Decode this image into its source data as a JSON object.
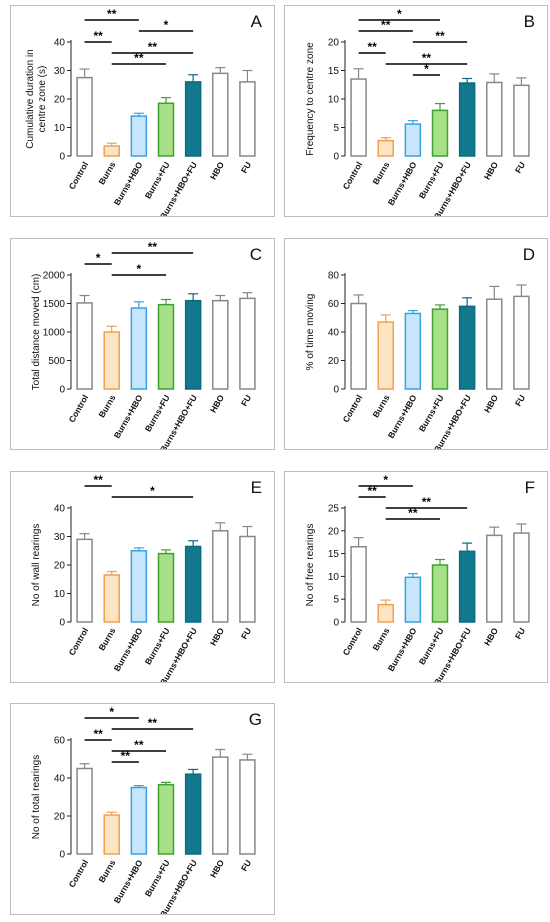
{
  "figure": {
    "bar_colors": [
      "#888888",
      "#f0a050",
      "#3aa0e0",
      "#40a030",
      "#0a6a80",
      "#888888",
      "#888888"
    ],
    "bar_fills": [
      "#ffffff",
      "#fde4c3",
      "#c8e6fb",
      "#a8e08a",
      "#12788e",
      "#ffffff",
      "#ffffff"
    ]
  },
  "chart_data": [
    {
      "type": "bar",
      "panel": "A",
      "ylabel": "Cumulative duration in\ncentre zone (s)",
      "categories": [
        "Control",
        "Burns",
        "Burns+HBO",
        "Burns+FU",
        "Burns+HBO+FU",
        "HBO",
        "FU"
      ],
      "values": [
        27.5,
        3.5,
        14.0,
        18.5,
        26.0,
        29.0,
        26.0
      ],
      "errors": [
        3.0,
        1.0,
        1.0,
        2.0,
        2.5,
        2.0,
        4.0
      ],
      "ylim": [
        0,
        40
      ],
      "yticks": [
        0,
        10,
        20,
        30,
        40
      ],
      "annotations": [
        {
          "from": 0,
          "to": 2,
          "label": "**"
        },
        {
          "from": 2,
          "to": 4,
          "label": "*"
        },
        {
          "from": 0,
          "to": 1,
          "label": "**"
        },
        {
          "from": 1,
          "to": 4,
          "label": "**"
        },
        {
          "from": 1,
          "to": 3,
          "label": "**"
        }
      ]
    },
    {
      "type": "bar",
      "panel": "B",
      "ylabel": "Frequency to centre zone",
      "categories": [
        "Control",
        "Burns",
        "Burns+HBO",
        "Burns+FU",
        "Burns+HBO+FU",
        "HBO",
        "FU"
      ],
      "values": [
        13.5,
        2.7,
        5.6,
        8.0,
        12.8,
        12.9,
        12.4
      ],
      "errors": [
        1.8,
        0.5,
        0.6,
        1.2,
        0.8,
        1.5,
        1.3
      ],
      "ylim": [
        0,
        20
      ],
      "yticks": [
        0,
        5,
        10,
        15,
        20
      ],
      "annotations": [
        {
          "from": 0,
          "to": 3,
          "label": "*"
        },
        {
          "from": 0,
          "to": 2,
          "label": "**"
        },
        {
          "from": 2,
          "to": 4,
          "label": "**"
        },
        {
          "from": 0,
          "to": 1,
          "label": "**"
        },
        {
          "from": 1,
          "to": 4,
          "label": "**"
        },
        {
          "from": 2,
          "to": 3,
          "label": "*"
        }
      ]
    },
    {
      "type": "bar",
      "panel": "C",
      "ylabel": "Total distance moved (cm)",
      "categories": [
        "Control",
        "Burns",
        "Burns+HBO",
        "Burns+FU",
        "Burns+HBO+FU",
        "HBO",
        "FU"
      ],
      "values": [
        1510,
        1000,
        1420,
        1480,
        1550,
        1550,
        1590
      ],
      "errors": [
        130,
        100,
        110,
        90,
        120,
        90,
        100
      ],
      "ylim": [
        0,
        2000
      ],
      "yticks": [
        0,
        500,
        1000,
        1500,
        2000
      ],
      "annotations": [
        {
          "from": 1,
          "to": 4,
          "label": "**"
        },
        {
          "from": 0,
          "to": 1,
          "label": "*"
        },
        {
          "from": 1,
          "to": 3,
          "label": "*"
        }
      ]
    },
    {
      "type": "bar",
      "panel": "D",
      "ylabel": "% of time moving",
      "categories": [
        "Control",
        "Burns",
        "Burns+HBO",
        "Burns+FU",
        "Burns+HBO+FU",
        "HBO",
        "FU"
      ],
      "values": [
        60,
        47,
        53,
        56,
        58,
        63,
        65
      ],
      "errors": [
        6,
        5,
        2,
        3,
        6,
        9,
        8
      ],
      "ylim": [
        0,
        80
      ],
      "yticks": [
        0,
        20,
        40,
        60,
        80
      ],
      "annotations": []
    },
    {
      "type": "bar",
      "panel": "E",
      "ylabel": "No of wall rearings",
      "categories": [
        "Control",
        "Burns",
        "Burns+HBO",
        "Burns+FU",
        "Burns+HBO+FU",
        "HBO",
        "FU"
      ],
      "values": [
        29,
        16.5,
        25,
        24,
        26.5,
        32,
        30
      ],
      "errors": [
        2,
        1.2,
        1,
        1.3,
        2,
        2.8,
        3.5
      ],
      "ylim": [
        0,
        40
      ],
      "yticks": [
        0,
        10,
        20,
        30,
        40
      ],
      "annotations": [
        {
          "from": 0,
          "to": 1,
          "label": "**"
        },
        {
          "from": 1,
          "to": 4,
          "label": "*"
        }
      ]
    },
    {
      "type": "bar",
      "panel": "F",
      "ylabel": "No of free rearings",
      "categories": [
        "Control",
        "Burns",
        "Burns+HBO",
        "Burns+FU",
        "Burns+HBO+FU",
        "HBO",
        "FU"
      ],
      "values": [
        16.5,
        3.8,
        9.8,
        12.5,
        15.5,
        19,
        19.5
      ],
      "errors": [
        2,
        1,
        0.8,
        1.2,
        1.8,
        1.8,
        2
      ],
      "ylim": [
        0,
        25
      ],
      "yticks": [
        0,
        5,
        10,
        15,
        20,
        25
      ],
      "annotations": [
        {
          "from": 0,
          "to": 2,
          "label": "*"
        },
        {
          "from": 0,
          "to": 1,
          "label": "**"
        },
        {
          "from": 1,
          "to": 4,
          "label": "**"
        },
        {
          "from": 1,
          "to": 3,
          "label": "**"
        }
      ]
    },
    {
      "type": "bar",
      "panel": "G",
      "ylabel": "No of total rearings",
      "categories": [
        "Control",
        "Burns",
        "Burns+HBO",
        "Burns+FU",
        "Burns+HBO+FU",
        "HBO",
        "FU"
      ],
      "values": [
        45,
        20.5,
        35,
        36.5,
        42,
        51,
        49.5
      ],
      "errors": [
        2.5,
        1.5,
        1,
        1.2,
        2.5,
        4,
        3
      ],
      "ylim": [
        0,
        60
      ],
      "yticks": [
        0,
        20,
        40,
        60
      ],
      "annotations": [
        {
          "from": 0,
          "to": 2,
          "label": "*"
        },
        {
          "from": 1,
          "to": 4,
          "label": "**"
        },
        {
          "from": 0,
          "to": 1,
          "label": "**"
        },
        {
          "from": 1,
          "to": 3,
          "label": "**"
        },
        {
          "from": 1,
          "to": 2,
          "label": "**"
        }
      ]
    }
  ]
}
